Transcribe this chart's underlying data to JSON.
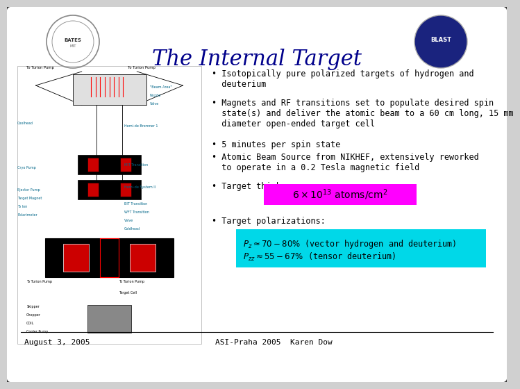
{
  "title": "The Internal Target",
  "title_color": "#00008B",
  "title_fontsize": 22,
  "bg_color": "#d0d0d0",
  "slide_bg": "#ffffff",
  "border_color": "#333333",
  "thickness_bg": "#ff00ff",
  "polarization_bg": "#00d8e8",
  "footer_left": "August 3, 2005",
  "footer_right": "ASI-Praha 2005  Karen Dow",
  "footer_color": "#000000",
  "font_size_body": 8.5,
  "font_size_footer": 8,
  "bullet1": "• Isotopically pure polarized targets of hydrogen and\n  deuterium",
  "bullet2": "• Magnets and RF transitions set to populate desired spin\n  state(s) and deliver the atomic beam to a 60 cm long, 15 mm\n  diameter open-ended target cell",
  "bullet3": "• 5 minutes per spin state",
  "bullet4": "• Atomic Beam Source from NIKHEF, extensively reworked\n  to operate in a 0.2 Tesla magnetic field",
  "bullet5": "• Target thickness:",
  "bullet6": "• Target polarizations:",
  "pol_line1": "$P_z \\approx 70-80\\%$ (vector hydrogen and deuterium)",
  "pol_line2": "$P_{zz} \\approx 55-67\\%$ (tensor deuterium)"
}
